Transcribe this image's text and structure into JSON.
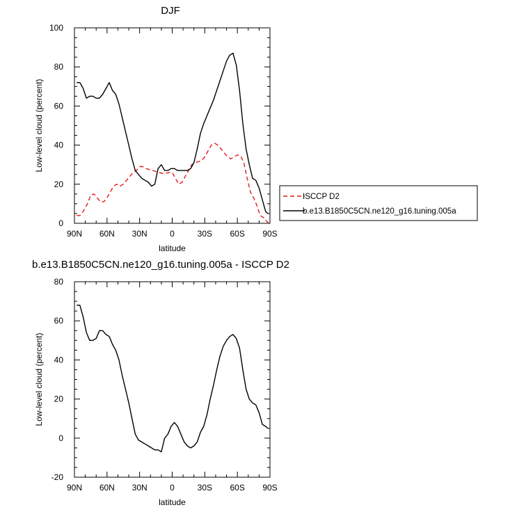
{
  "colors": {
    "model": "#000000",
    "obs": "#e41a1c",
    "axis": "#000000"
  },
  "chart_data": [
    {
      "type": "line",
      "title": "DJF",
      "xlabel": "latitude",
      "ylabel": "Low-level cloud (percent)",
      "xlim": [
        90,
        -90
      ],
      "ylim": [
        0,
        100
      ],
      "xticks": [
        90,
        60,
        30,
        0,
        -30,
        -60,
        -90
      ],
      "xtick_labels": [
        "90N",
        "60N",
        "30N",
        "0",
        "30S",
        "60S",
        "90S"
      ],
      "yticks": [
        0,
        20,
        40,
        60,
        80,
        100
      ],
      "ytick_labels": [
        "0",
        "20",
        "40",
        "60",
        "80",
        "100"
      ],
      "legend_position": "right",
      "series": [
        {
          "name": "ISCCP D2",
          "style": "dashed",
          "color": "#e41a1c",
          "x": [
            88,
            85,
            82,
            78,
            75,
            72,
            69,
            66,
            63,
            60,
            57,
            54,
            51,
            48,
            45,
            42,
            39,
            36,
            33,
            30,
            27,
            24,
            21,
            18,
            15,
            12,
            9,
            6,
            3,
            0,
            -3,
            -6,
            -9,
            -12,
            -15,
            -18,
            -21,
            -24,
            -27,
            -30,
            -33,
            -36,
            -39,
            -42,
            -45,
            -48,
            -51,
            -54,
            -57,
            -60,
            -63,
            -66,
            -69,
            -72,
            -75,
            -78,
            -81,
            -84,
            -87,
            -89
          ],
          "y": [
            4,
            4,
            6,
            10,
            14.5,
            15,
            13,
            11,
            11,
            13,
            16,
            19,
            20,
            19,
            20,
            22,
            24,
            26,
            27,
            29,
            29,
            28,
            27.5,
            27,
            26.5,
            26,
            25.5,
            25.5,
            26,
            26,
            23,
            20,
            21,
            24,
            27,
            30,
            31,
            31.5,
            32,
            34,
            37,
            40,
            41,
            40,
            38,
            36,
            34,
            33,
            34,
            35,
            34.5,
            31,
            23,
            16,
            13,
            9,
            4,
            3,
            1,
            0
          ]
        },
        {
          "name": "b.e13.B1850C5CN.ne120_g16.tuning.005a",
          "style": "solid",
          "color": "#000000",
          "x": [
            88,
            85,
            82,
            79,
            76,
            73,
            70,
            67,
            64,
            61,
            58,
            55,
            52,
            49,
            46,
            43,
            40,
            37,
            34,
            31,
            28,
            25,
            22,
            19,
            16,
            13,
            10,
            7,
            4,
            1,
            -2,
            -5,
            -8,
            -11,
            -14,
            -17,
            -20,
            -23,
            -26,
            -29,
            -32,
            -35,
            -38,
            -41,
            -44,
            -47,
            -50,
            -53,
            -56,
            -59,
            -62,
            -65,
            -68,
            -71,
            -74,
            -77,
            -80,
            -83,
            -86,
            -88
          ],
          "y": [
            72,
            72,
            69,
            64,
            65,
            65,
            64,
            64,
            66,
            69,
            72,
            68,
            66,
            61,
            54,
            47,
            40,
            33,
            27,
            25,
            23,
            22,
            21,
            19,
            20,
            28,
            30,
            27,
            27,
            28,
            28,
            27,
            27,
            27,
            27,
            28,
            31,
            38,
            46,
            51,
            55,
            59,
            63,
            68,
            73,
            78,
            83,
            86,
            87,
            81,
            68,
            51,
            38,
            30,
            23,
            22,
            18,
            12,
            6,
            5
          ]
        }
      ]
    },
    {
      "type": "line",
      "title": "b.e13.B1850C5CN.ne120_g16.tuning.005a - ISCCP D2",
      "xlabel": "latitude",
      "ylabel": "Low-level cloud (percent)",
      "xlim": [
        90,
        -90
      ],
      "ylim": [
        -20,
        80
      ],
      "xticks": [
        90,
        60,
        30,
        0,
        -30,
        -60,
        -90
      ],
      "xtick_labels": [
        "90N",
        "60N",
        "30N",
        "0",
        "30S",
        "60S",
        "90S"
      ],
      "yticks": [
        -20,
        0,
        20,
        40,
        60,
        80
      ],
      "ytick_labels": [
        "-20",
        "0",
        "20",
        "40",
        "60",
        "80"
      ],
      "series": [
        {
          "style": "solid",
          "color": "#000000",
          "x": [
            88,
            85,
            82,
            79,
            76,
            73,
            70,
            67,
            64,
            61,
            58,
            55,
            52,
            49,
            46,
            43,
            40,
            37,
            34,
            31,
            28,
            25,
            22,
            19,
            16,
            13,
            10,
            7,
            4,
            1,
            -2,
            -5,
            -8,
            -11,
            -14,
            -17,
            -20,
            -23,
            -26,
            -29,
            -32,
            -35,
            -38,
            -41,
            -44,
            -47,
            -50,
            -53,
            -56,
            -59,
            -62,
            -65,
            -68,
            -71,
            -74,
            -77,
            -80,
            -83,
            -86,
            -88
          ],
          "y": [
            68,
            68,
            62,
            54,
            50,
            50,
            51,
            55,
            55,
            53,
            52,
            48,
            45,
            40,
            32,
            25,
            18,
            10,
            2,
            -1,
            -2,
            -3,
            -4,
            -5,
            -6,
            -6,
            -7,
            0,
            2,
            6,
            8,
            6,
            2,
            -2,
            -4,
            -5,
            -4,
            -2,
            3,
            6,
            12,
            20,
            27,
            35,
            42,
            47,
            50,
            52,
            53,
            51,
            46,
            35,
            25,
            20,
            18,
            17,
            13,
            7,
            6,
            5
          ]
        }
      ]
    }
  ]
}
